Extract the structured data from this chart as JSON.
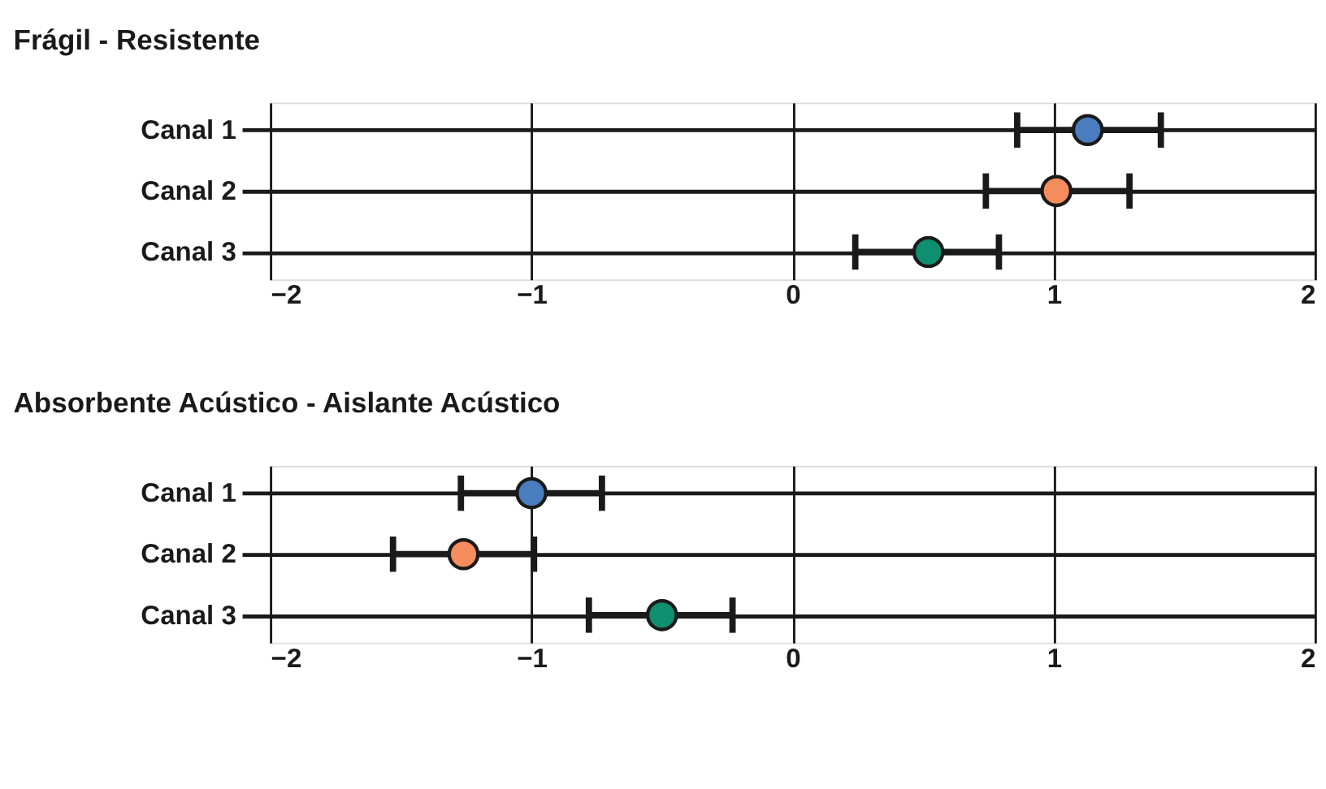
{
  "chart_data": [
    {
      "type": "scatter",
      "title": "Frágil - Resistente",
      "orientation": "horizontal",
      "categories": [
        "Canal 1",
        "Canal 2",
        "Canal 3"
      ],
      "values": [
        1.13,
        1.01,
        0.52
      ],
      "errors": [
        [
          0.86,
          1.41
        ],
        [
          0.74,
          1.29
        ],
        [
          0.24,
          0.79
        ]
      ],
      "colors": [
        "#4a7cc0",
        "#f48c5e",
        "#0e8f6f"
      ],
      "xlim": [
        -2,
        2
      ],
      "xticks": [
        -2,
        -1,
        0,
        1,
        2
      ],
      "grid": true,
      "marker": "circle"
    },
    {
      "type": "scatter",
      "title": "Absorbente Acústico - Aislante Acústico",
      "orientation": "horizontal",
      "categories": [
        "Canal 1",
        "Canal 2",
        "Canal 3"
      ],
      "values": [
        -1.0,
        -1.26,
        -0.5
      ],
      "errors": [
        [
          -1.27,
          -0.73
        ],
        [
          -1.53,
          -0.99
        ],
        [
          -0.78,
          -0.23
        ]
      ],
      "colors": [
        "#4a7cc0",
        "#f48c5e",
        "#0e8f6f"
      ],
      "xlim": [
        -2,
        2
      ],
      "xticks": [
        -2,
        -1,
        0,
        1,
        2
      ],
      "grid": true,
      "marker": "circle"
    }
  ]
}
